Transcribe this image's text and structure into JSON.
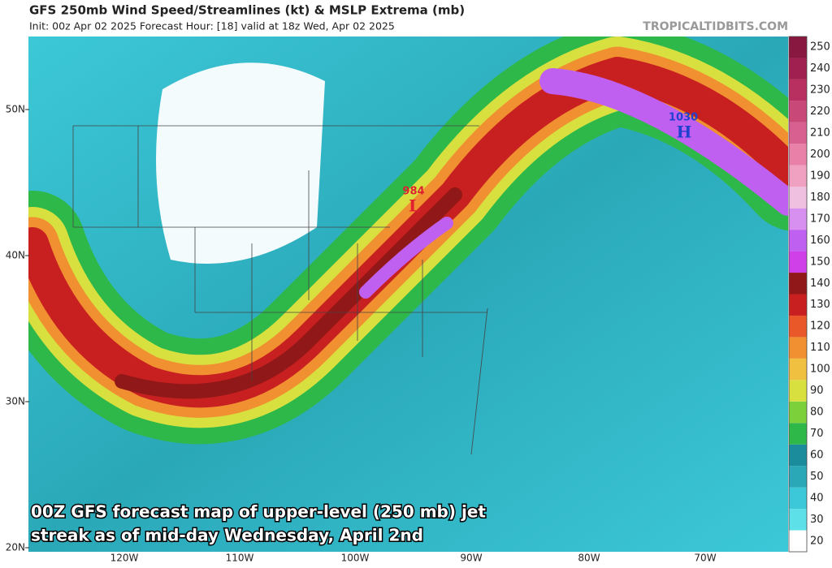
{
  "header": {
    "title": "GFS 250mb Wind Speed/Streamlines (kt) & MSLP Extrema (mb)",
    "subtitle": "Init: 00z Apr 02 2025   Forecast Hour: [18]   valid at 18z Wed, Apr 02 2025",
    "credit": "TROPICALTIDBITS.COM"
  },
  "map": {
    "lat_labels": [
      "20N",
      "30N",
      "40N",
      "50N"
    ],
    "lon_labels": [
      "120W",
      "110W",
      "100W",
      "90W",
      "80W",
      "70W"
    ],
    "extrema": [
      {
        "pressure": 984,
        "symbol": "L"
      },
      {
        "pressure": 1030,
        "symbol": "H"
      }
    ]
  },
  "colorbar": {
    "labels": [
      20,
      30,
      40,
      50,
      60,
      70,
      80,
      90,
      100,
      110,
      120,
      130,
      140,
      150,
      160,
      170,
      180,
      190,
      200,
      210,
      220,
      230,
      240,
      250
    ],
    "colors": [
      "#ffffff",
      "#5ee0e8",
      "#3cc8d8",
      "#2aa8b8",
      "#1a8c9c",
      "#2eb84a",
      "#7cd03a",
      "#d8e040",
      "#f0c040",
      "#f09030",
      "#e85828",
      "#c82020",
      "#901818",
      "#d040e8",
      "#c060f0",
      "#d890f0",
      "#f0c0e0",
      "#f0a0c0",
      "#e880a8",
      "#d86090",
      "#c84878",
      "#b83060",
      "#a02050",
      "#881840"
    ]
  },
  "caption": [
    "00Z GFS forecast map of upper-level (250 mb) jet",
    "streak as of mid-day Wednesday, April 2nd"
  ]
}
